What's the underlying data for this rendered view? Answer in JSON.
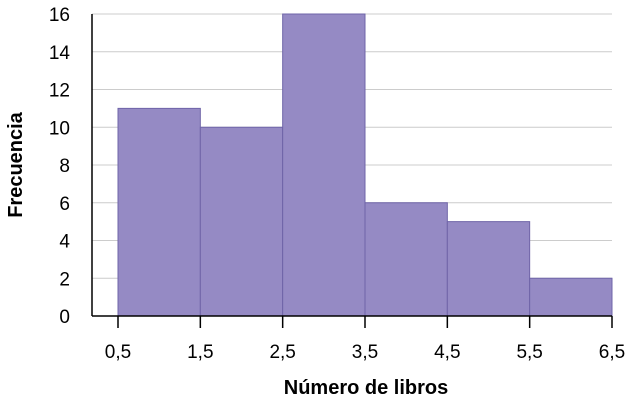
{
  "chart_data": {
    "type": "bar",
    "title": "",
    "xlabel": "Número de libros",
    "ylabel": "Frecuencia",
    "bins": [
      {
        "from": 0.5,
        "to": 1.5,
        "value": 11
      },
      {
        "from": 1.5,
        "to": 2.5,
        "value": 10
      },
      {
        "from": 2.5,
        "to": 3.5,
        "value": 16
      },
      {
        "from": 3.5,
        "to": 4.5,
        "value": 6
      },
      {
        "from": 4.5,
        "to": 5.5,
        "value": 5
      },
      {
        "from": 5.5,
        "to": 6.5,
        "value": 2
      }
    ],
    "x_ticks": [
      "0,5",
      "1,5",
      "2,5",
      "3,5",
      "4,5",
      "5,5",
      "6,5"
    ],
    "y_ticks": [
      "0",
      "2",
      "4",
      "6",
      "8",
      "10",
      "12",
      "14",
      "16"
    ],
    "xlim": [
      0.5,
      6.5
    ],
    "ylim": [
      0,
      16
    ],
    "grid": true,
    "bar_color": "#958ac4",
    "bar_edge_color": "#6f64a8",
    "grid_color": "#cccccc"
  }
}
